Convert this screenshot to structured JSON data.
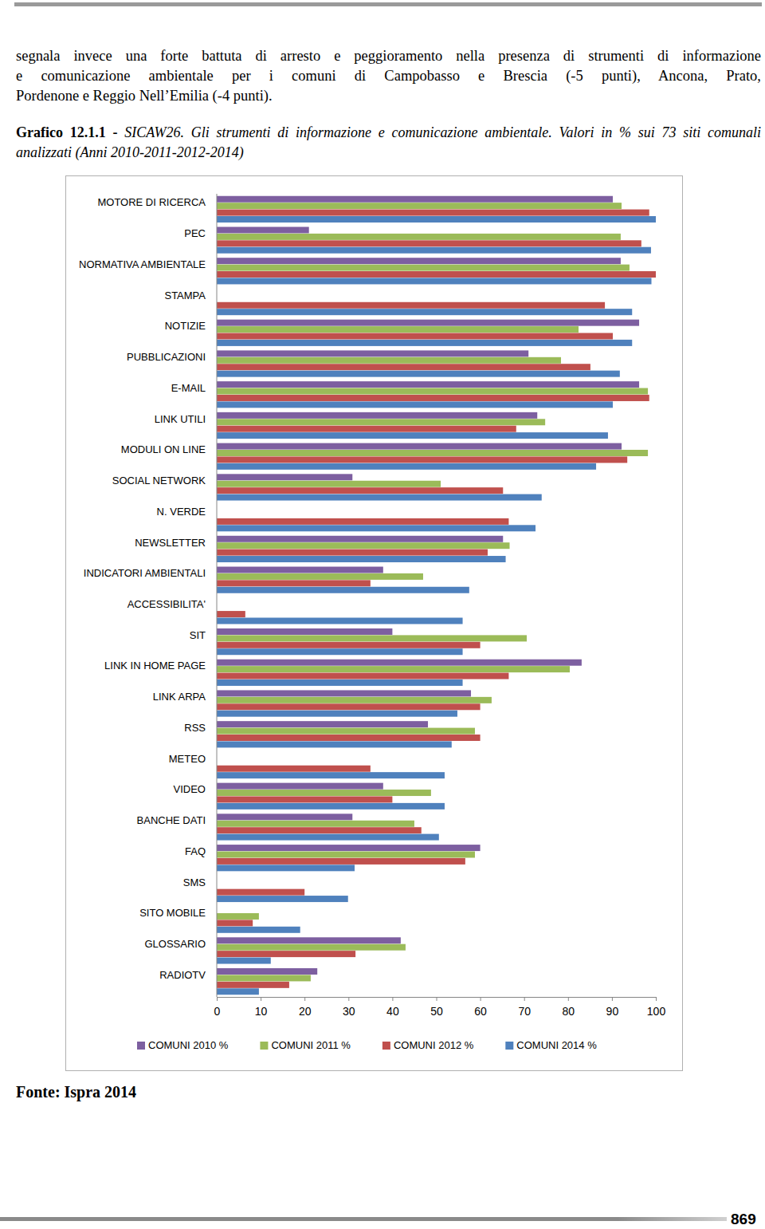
{
  "text_lines": [
    "segnala invece una forte battuta di arresto e peggioramento nella presenza di strumenti di informazione",
    "e comunicazione ambientale per i comuni di Campobasso e Brescia (-5 punti), Ancona, Prato,",
    "Pordenone e Reggio Nell’Emilia (-4 punti)."
  ],
  "caption": {
    "label": "Grafico 12.1.1 -",
    "text": "SICAW26. Gli strumenti di informazione e comunicazione ambientale. Valori in % sui 73 siti comunali analizzati (Anni 2010-2011-2012-2014)"
  },
  "source": "Fonte: Ispra 2014",
  "page_number": "869",
  "chart_data": {
    "type": "bar",
    "orientation": "horizontal",
    "grid": false,
    "legend": "bottom",
    "categories": [
      "MOTORE DI RICERCA",
      "PEC",
      "NORMATIVA AMBIENTALE",
      "STAMPA",
      "NOTIZIE",
      "PUBBLICAZIONI",
      "E-MAIL",
      "LINK UTILI",
      "MODULI ON LINE",
      "SOCIAL NETWORK",
      "N. VERDE",
      "NEWSLETTER",
      "INDICATORI AMBIENTALI",
      "ACCESSIBILITA'",
      "SIT",
      "LINK IN HOME PAGE",
      "LINK ARPA",
      "RSS",
      "METEO",
      "VIDEO",
      "BANCHE DATI",
      "FAQ",
      "SMS",
      "SITO MOBILE",
      "GLOSSARIO",
      "RADIOTV"
    ],
    "series": [
      {
        "name": "COMUNI 2010 %",
        "color": "#7d5fa0",
        "values": [
          90.2,
          21,
          92,
          null,
          96.2,
          71,
          96.2,
          73,
          92.2,
          30.9,
          null,
          65.2,
          37.9,
          null,
          40,
          83.1,
          57.9,
          48.1,
          null,
          37.9,
          30.9,
          60,
          null,
          null,
          41.9,
          22.9
        ]
      },
      {
        "name": "COMUNI 2011 %",
        "color": "#9bbb59",
        "values": [
          92.2,
          92,
          94,
          null,
          82.4,
          78.4,
          98.2,
          74.8,
          98.2,
          51,
          null,
          66.7,
          47,
          null,
          70.6,
          80.4,
          62.6,
          58.8,
          null,
          48.8,
          45,
          58.8,
          null,
          9.6,
          43,
          21.4
        ]
      },
      {
        "name": "COMUNI 2012 %",
        "color": "#c0504d",
        "values": [
          98.5,
          96.7,
          100,
          88.4,
          90.2,
          85.1,
          98.5,
          68.2,
          93.5,
          65.2,
          66.5,
          61.7,
          35,
          6.5,
          60,
          66.5,
          60,
          60,
          35,
          40,
          46.6,
          56.6,
          20,
          8.2,
          31.6,
          16.5
        ]
      },
      {
        "name": "COMUNI 2014 %",
        "color": "#4f81bd",
        "values": [
          100,
          98.9,
          99,
          94.6,
          94.6,
          91.8,
          90.2,
          89.1,
          86.4,
          74,
          72.6,
          65.8,
          57.5,
          56,
          56,
          56,
          54.8,
          53.5,
          51.9,
          51.9,
          50.6,
          31.4,
          29.9,
          19,
          12.3,
          9.6
        ]
      }
    ],
    "xlim": [
      0,
      100
    ],
    "xticks": [
      0,
      10,
      20,
      30,
      40,
      50,
      60,
      70,
      80,
      90,
      100
    ]
  }
}
